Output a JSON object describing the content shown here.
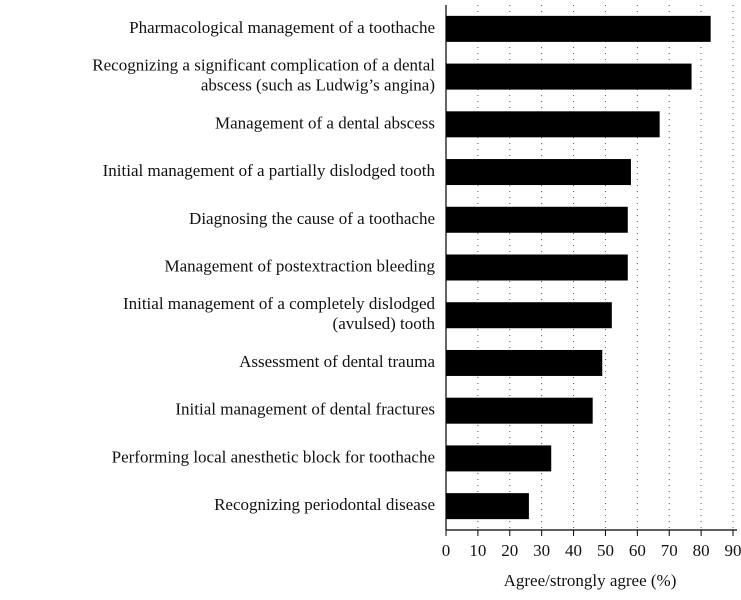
{
  "chart_data": {
    "type": "barh",
    "categories": [
      "Pharmacological management of a toothache",
      "Recognizing a significant complication of a dental\nabscess (such as Ludwig’s angina)",
      "Management of a dental abscess",
      "Initial management of a partially dislodged tooth",
      "Diagnosing the cause of a toothache",
      "Management of postextraction bleeding",
      "Initial management of a completely dislodged\n(avulsed) tooth",
      "Assessment of dental trauma",
      "Initial management of dental fractures",
      "Performing local anesthetic block for toothache",
      "Recognizing periodontal disease"
    ],
    "values": [
      83,
      77,
      67,
      58,
      57,
      57,
      52,
      49,
      46,
      33,
      26
    ],
    "color": "#000000",
    "xlabel": "Agree/strongly agree (%)",
    "xlim": [
      0,
      90
    ],
    "xticks": [
      0,
      10,
      20,
      30,
      40,
      50,
      60,
      70,
      80,
      90
    ],
    "grid": true
  }
}
